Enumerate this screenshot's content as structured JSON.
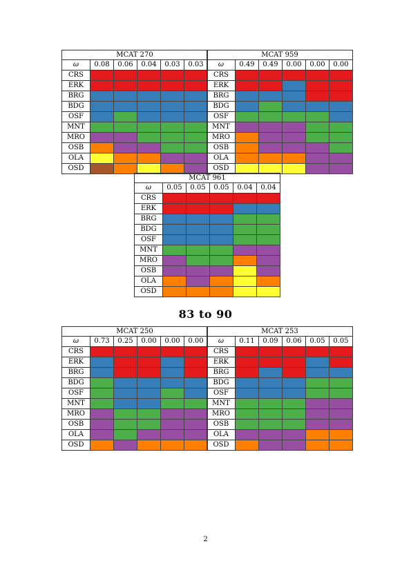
{
  "colors": {
    "R": "#e41a1c",
    "B": "#377eb8",
    "G": "#4daf4a",
    "P": "#984ea3",
    "O": "#ff7f00",
    "Y": "#ffff33",
    "N": "#a65628"
  },
  "row_labels": [
    "CRS",
    "ERK",
    "BRG",
    "BDG",
    "OSF",
    "MNT",
    "MRO",
    "OSB",
    "OLA",
    "OSD"
  ],
  "omega_symbol": "ω",
  "tables": [
    {
      "title": "MCAT 270",
      "weights": [
        "0.08",
        "0.06",
        "0.04",
        "0.03",
        "0.03"
      ],
      "grid": [
        [
          "R",
          "R",
          "R",
          "R",
          "R"
        ],
        [
          "R",
          "R",
          "R",
          "R",
          "R"
        ],
        [
          "B",
          "B",
          "B",
          "B",
          "B"
        ],
        [
          "B",
          "B",
          "B",
          "B",
          "B"
        ],
        [
          "B",
          "G",
          "B",
          "B",
          "B"
        ],
        [
          "G",
          "G",
          "G",
          "G",
          "G"
        ],
        [
          "P",
          "P",
          "G",
          "G",
          "G"
        ],
        [
          "O",
          "P",
          "P",
          "G",
          "G"
        ],
        [
          "Y",
          "O",
          "O",
          "P",
          "P"
        ],
        [
          "N",
          "O",
          "Y",
          "O",
          "P"
        ]
      ]
    },
    {
      "title": "MCAT 959",
      "weights": [
        "0.49",
        "0.49",
        "0.00",
        "0.00",
        "0.00"
      ],
      "grid": [
        [
          "R",
          "R",
          "R",
          "R",
          "R"
        ],
        [
          "R",
          "R",
          "B",
          "R",
          "R"
        ],
        [
          "B",
          "B",
          "B",
          "R",
          "R"
        ],
        [
          "B",
          "G",
          "B",
          "B",
          "B"
        ],
        [
          "G",
          "G",
          "G",
          "G",
          "B"
        ],
        [
          "P",
          "P",
          "P",
          "G",
          "G"
        ],
        [
          "O",
          "P",
          "P",
          "G",
          "G"
        ],
        [
          "O",
          "P",
          "P",
          "P",
          "G"
        ],
        [
          "O",
          "O",
          "O",
          "P",
          "P"
        ],
        [
          "Y",
          "Y",
          "Y",
          "P",
          "P"
        ]
      ]
    },
    {
      "title": "MCAT 961",
      "weights": [
        "0.05",
        "0.05",
        "0.05",
        "0.04",
        "0.04"
      ],
      "grid": [
        [
          "R",
          "R",
          "R",
          "R",
          "R"
        ],
        [
          "R",
          "R",
          "R",
          "B",
          "B"
        ],
        [
          "B",
          "B",
          "B",
          "G",
          "G"
        ],
        [
          "B",
          "B",
          "B",
          "G",
          "G"
        ],
        [
          "B",
          "B",
          "B",
          "G",
          "G"
        ],
        [
          "G",
          "G",
          "G",
          "P",
          "P"
        ],
        [
          "P",
          "G",
          "G",
          "O",
          "P"
        ],
        [
          "P",
          "P",
          "P",
          "Y",
          "P"
        ],
        [
          "O",
          "P",
          "O",
          "Y",
          "O"
        ],
        [
          "O",
          "O",
          "O",
          "Y",
          "Y"
        ]
      ]
    },
    {
      "title": "MCAT 250",
      "weights": [
        "0.73",
        "0.25",
        "0.00",
        "0.00",
        "0.00"
      ],
      "grid": [
        [
          "R",
          "R",
          "R",
          "R",
          "R"
        ],
        [
          "B",
          "R",
          "R",
          "B",
          "R"
        ],
        [
          "B",
          "R",
          "R",
          "B",
          "R"
        ],
        [
          "G",
          "B",
          "B",
          "B",
          "B"
        ],
        [
          "G",
          "B",
          "B",
          "G",
          "B"
        ],
        [
          "G",
          "B",
          "B",
          "G",
          "G"
        ],
        [
          "P",
          "G",
          "G",
          "P",
          "P"
        ],
        [
          "P",
          "G",
          "G",
          "P",
          "P"
        ],
        [
          "P",
          "G",
          "P",
          "P",
          "P"
        ],
        [
          "O",
          "P",
          "O",
          "O",
          "O"
        ]
      ]
    },
    {
      "title": "MCAT 253",
      "weights": [
        "0.11",
        "0.09",
        "0.06",
        "0.05",
        "0.05"
      ],
      "grid": [
        [
          "R",
          "R",
          "R",
          "R",
          "R"
        ],
        [
          "R",
          "R",
          "R",
          "B",
          "R"
        ],
        [
          "R",
          "B",
          "R",
          "B",
          "B"
        ],
        [
          "B",
          "B",
          "B",
          "G",
          "G"
        ],
        [
          "B",
          "B",
          "B",
          "G",
          "G"
        ],
        [
          "G",
          "G",
          "G",
          "P",
          "P"
        ],
        [
          "G",
          "G",
          "G",
          "P",
          "P"
        ],
        [
          "G",
          "G",
          "G",
          "P",
          "P"
        ],
        [
          "P",
          "P",
          "P",
          "O",
          "O"
        ],
        [
          "O",
          "P",
          "P",
          "O",
          "O"
        ]
      ]
    }
  ],
  "section_heading": "83 to 90",
  "page_number": "2"
}
